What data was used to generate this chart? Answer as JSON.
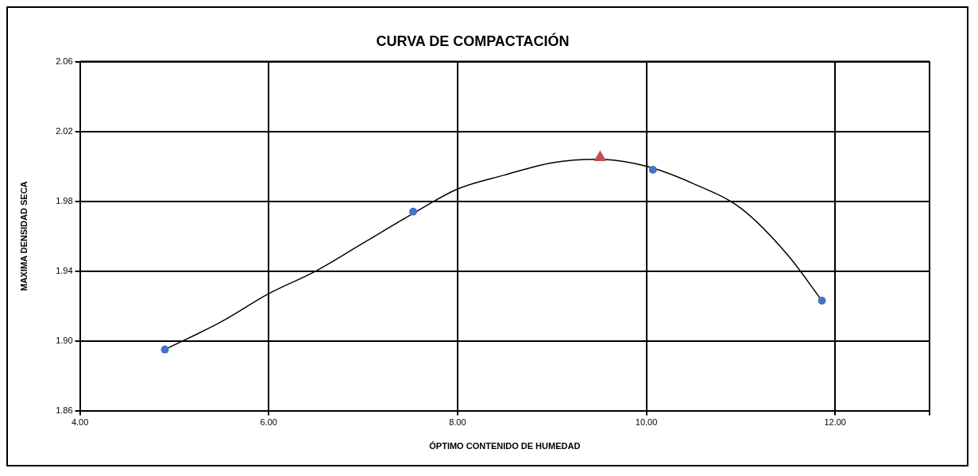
{
  "chart_data": {
    "type": "scatter",
    "title": "CURVA DE COMPACTACIÓN",
    "xlabel": "ÓPTIMO CONTENIDO DE HUMEDAD",
    "ylabel": "MAXIMA DENSIDAD SECA",
    "xlim": [
      4,
      13
    ],
    "xticks": [
      {
        "value": 4,
        "label": "4.00"
      },
      {
        "value": 6,
        "label": "6.00"
      },
      {
        "value": 8,
        "label": "8.00"
      },
      {
        "value": 10,
        "label": "10.00"
      },
      {
        "value": 12,
        "label": "12.00"
      },
      {
        "value": 13,
        "label": null
      }
    ],
    "ylim": [
      1.86,
      2.06
    ],
    "yticks": [
      {
        "value": 1.86,
        "label": "1.86"
      },
      {
        "value": 1.9,
        "label": "1.90"
      },
      {
        "value": 1.94,
        "label": "1.94"
      },
      {
        "value": 1.98,
        "label": "1.98"
      },
      {
        "value": 2.02,
        "label": "2.02"
      },
      {
        "value": 2.06,
        "label": "2.06"
      }
    ],
    "grid": true,
    "legend": false,
    "series": [
      {
        "type": "line",
        "color": "#000000",
        "marker": "none",
        "line_style": "solid",
        "x": [
          4.9,
          5.5,
          6,
          6.5,
          7,
          7.5,
          8,
          8.5,
          9,
          9.5,
          10,
          10.5,
          11,
          11.5,
          11.86
        ],
        "values": [
          1.895,
          1.911,
          1.927,
          1.94,
          1.956,
          1.972,
          1.987,
          1.995,
          2.002,
          2.004,
          2.0,
          1.99,
          1.976,
          1.949,
          1.923
        ]
      },
      {
        "color": "#4472c4",
        "marker": "circle",
        "x": [
          4.9,
          7.53,
          10.07,
          11.86
        ],
        "values": [
          1.895,
          1.974,
          1.998,
          1.923
        ]
      },
      {
        "color": "#c0504d",
        "marker": "triangle",
        "x": [
          9.51
        ],
        "values": [
          2.005
        ]
      }
    ]
  }
}
